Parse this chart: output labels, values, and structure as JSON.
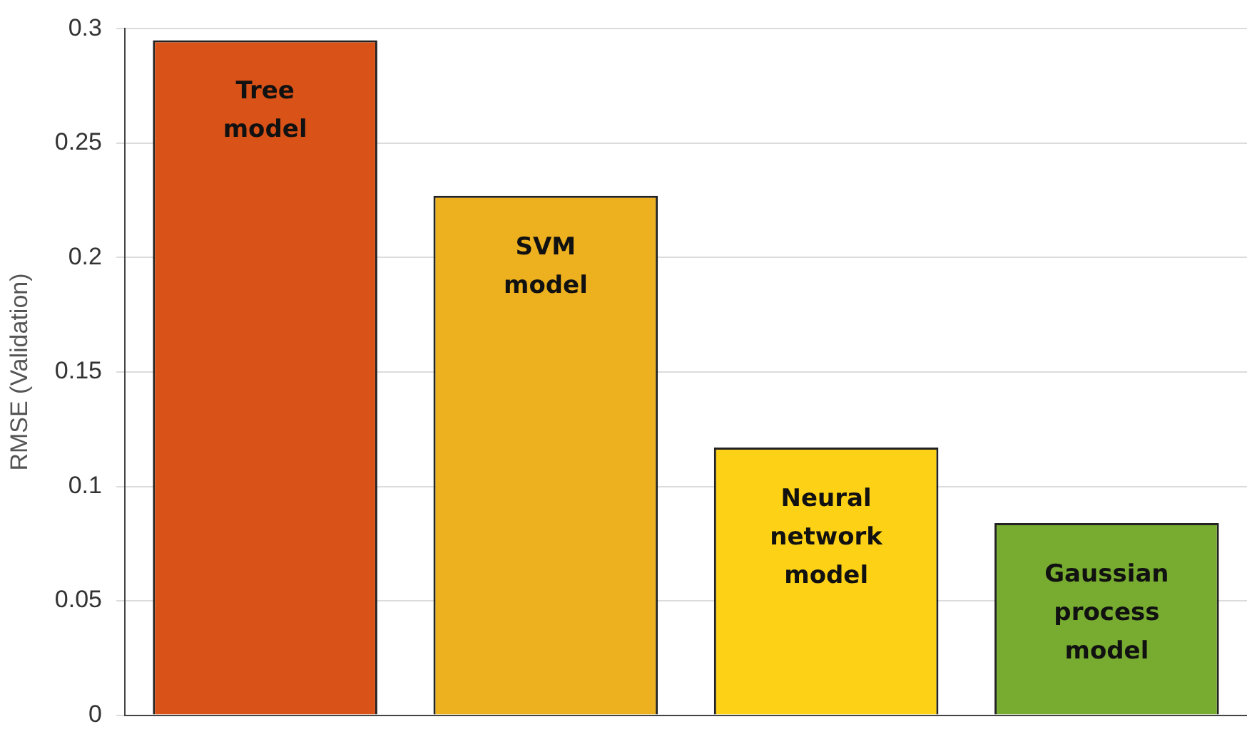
{
  "chart_data": {
    "type": "bar",
    "ylabel": "RMSE (Validation)",
    "categories": [
      "Tree model",
      "SVM model",
      "Neural network model",
      "Gaussian process model"
    ],
    "values": [
      0.295,
      0.227,
      0.117,
      0.084
    ],
    "colors": [
      "#d95319",
      "#edb120",
      "#fcd116",
      "#77ac30"
    ],
    "ylim": [
      0,
      0.3
    ],
    "yticks": [
      0,
      0.05,
      0.1,
      0.15,
      0.2,
      0.25,
      0.3
    ],
    "grid": "y",
    "legend": false
  }
}
